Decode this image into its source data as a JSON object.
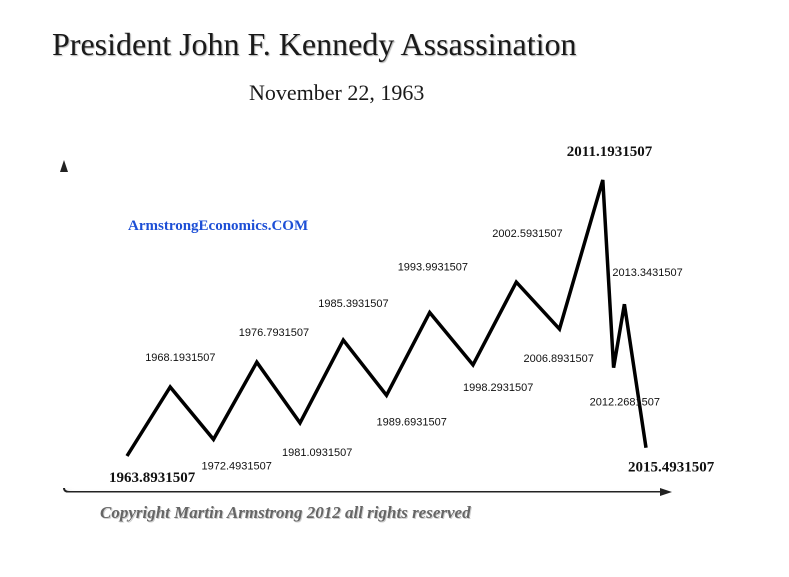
{
  "header": {
    "title": "President John F. Kennedy Assassination",
    "subtitle": "November 22, 1963"
  },
  "watermark": "ArmstrongEconomics.COM",
  "copyright": "Copyright Martin Armstrong 2012 all rights reserved",
  "chart_data": {
    "type": "line",
    "title": "President John F. Kennedy Assassination",
    "subtitle": "November 22, 1963",
    "xlabel": "",
    "ylabel": "",
    "grid": false,
    "legend": "none",
    "line_color": "#000000",
    "points": [
      {
        "label": "1963.8931507",
        "level": 0.0,
        "kind": "start"
      },
      {
        "label": "1968.1931507",
        "level": 0.25,
        "kind": "high"
      },
      {
        "label": "1972.4931507",
        "level": 0.06,
        "kind": "low"
      },
      {
        "label": "1976.7931507",
        "level": 0.34,
        "kind": "high"
      },
      {
        "label": "1981.0931507",
        "level": 0.12,
        "kind": "low"
      },
      {
        "label": "1985.3931507",
        "level": 0.42,
        "kind": "high"
      },
      {
        "label": "1989.6931507",
        "level": 0.22,
        "kind": "low"
      },
      {
        "label": "1993.9931507",
        "level": 0.52,
        "kind": "high"
      },
      {
        "label": "1998.2931507",
        "level": 0.33,
        "kind": "low"
      },
      {
        "label": "2002.5931507",
        "level": 0.63,
        "kind": "high"
      },
      {
        "label": "2006.8931507",
        "level": 0.46,
        "kind": "low"
      },
      {
        "label": "2011.1931507",
        "level": 1.0,
        "kind": "high"
      },
      {
        "label": "2012.2681507",
        "level": 0.32,
        "kind": "low"
      },
      {
        "label": "2013.3431507",
        "level": 0.55,
        "kind": "high"
      },
      {
        "label": "2015.4931507",
        "level": 0.03,
        "kind": "end"
      }
    ]
  }
}
